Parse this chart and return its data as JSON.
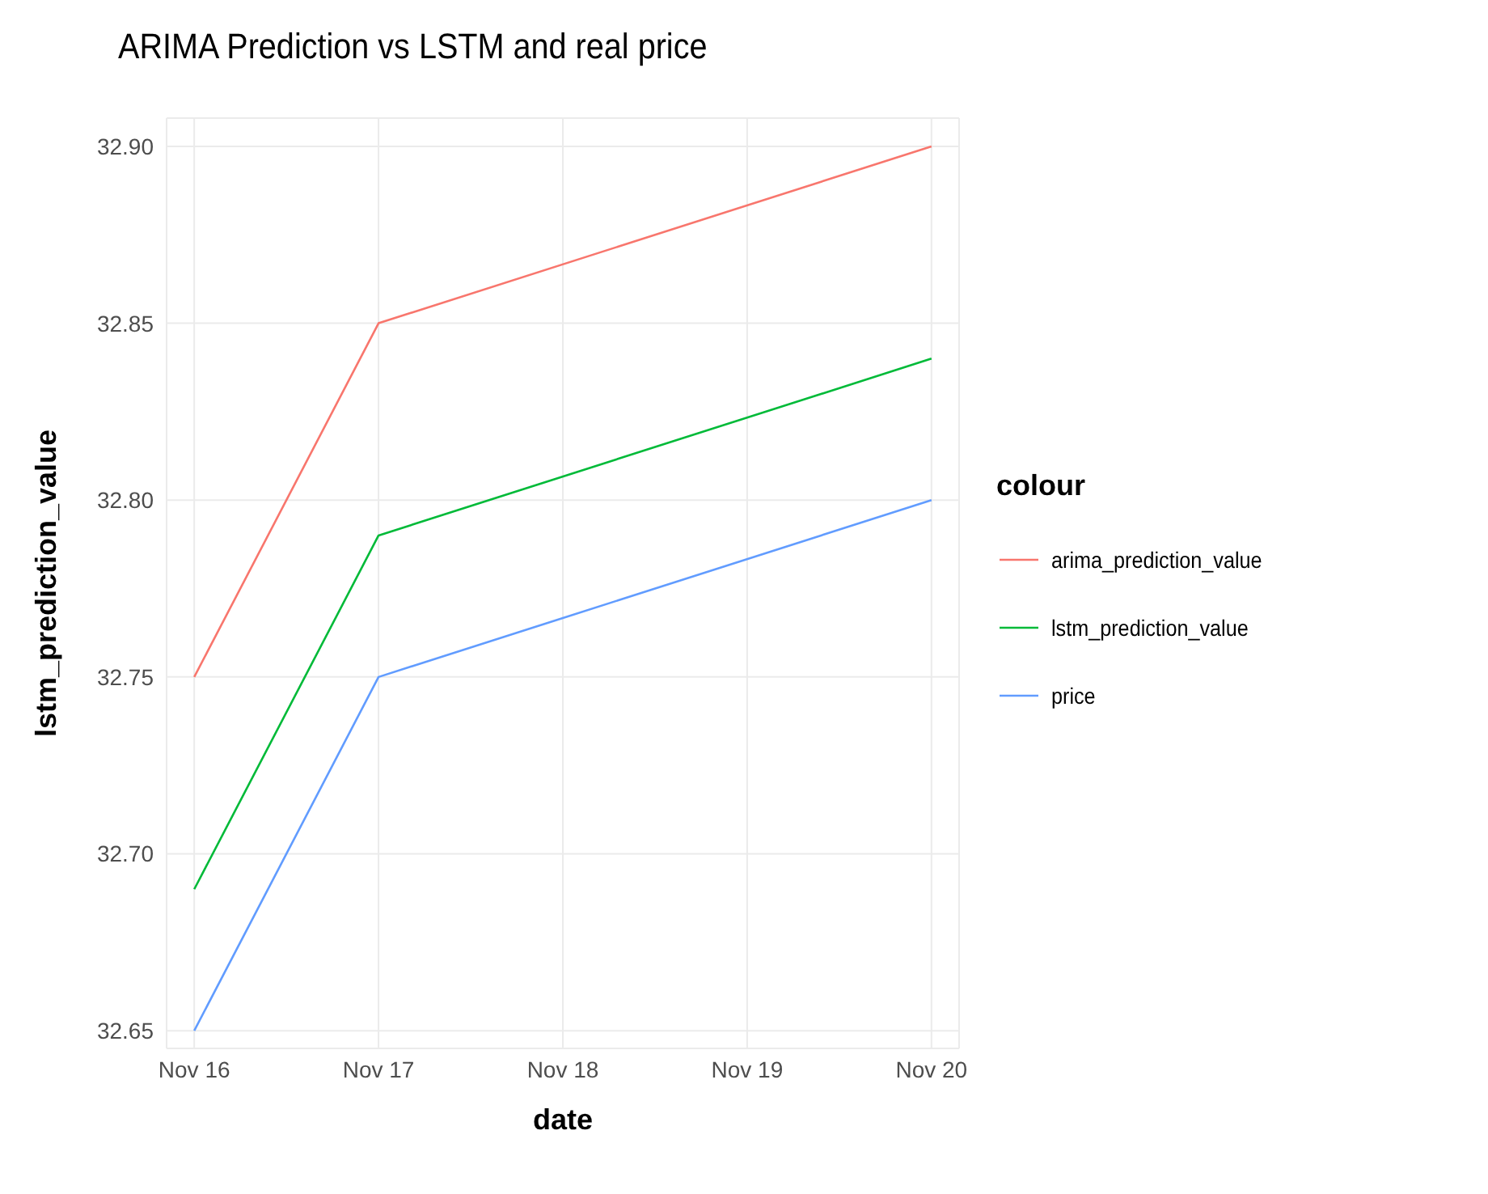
{
  "chart_data": {
    "type": "line",
    "title": "ARIMA Prediction vs LSTM and real price",
    "xlabel": "date",
    "ylabel": "lstm_prediction_value",
    "legend_title": "colour",
    "x": [
      "--11-16",
      "--11-17",
      "--11-20"
    ],
    "series": [
      {
        "name": "arima_prediction_value",
        "color": "#f8766d",
        "values": [
          32.75,
          32.85,
          32.9
        ]
      },
      {
        "name": "lstm_prediction_value",
        "color": "#00ba38",
        "values": [
          32.69,
          32.79,
          32.84
        ]
      },
      {
        "name": "price",
        "color": "#619cff",
        "values": [
          32.65,
          32.75,
          32.8
        ]
      }
    ],
    "xlim": [
      "--11-16",
      "--11-20"
    ],
    "xticks": [
      {
        "value": "--11-16",
        "label": "Nov 16"
      },
      {
        "value": "--11-17",
        "label": "Nov 17"
      },
      {
        "value": "--11-18",
        "label": "Nov 18"
      },
      {
        "value": "--11-19",
        "label": "Nov 19"
      },
      {
        "value": "--11-20",
        "label": "Nov 20"
      }
    ],
    "ylim": [
      32.645,
      32.908
    ],
    "yticks": [
      {
        "value": 32.65,
        "label": "32.65"
      },
      {
        "value": 32.7,
        "label": "32.70"
      },
      {
        "value": 32.75,
        "label": "32.75"
      },
      {
        "value": 32.8,
        "label": "32.80"
      },
      {
        "value": 32.85,
        "label": "32.85"
      },
      {
        "value": 32.9,
        "label": "32.90"
      }
    ],
    "grid": true,
    "legend": "right",
    "marker": "none",
    "line_style": "solid"
  }
}
